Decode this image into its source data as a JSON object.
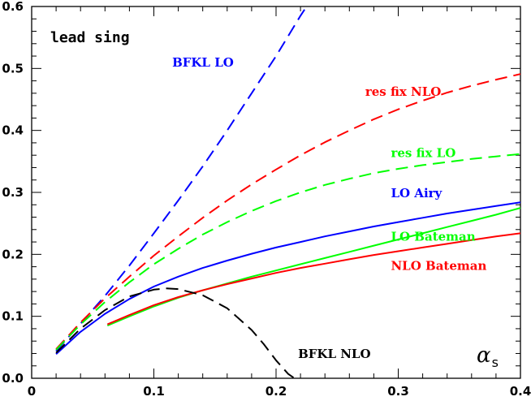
{
  "chart_data": {
    "type": "line",
    "title": "lead sing",
    "xlabel_symbol": "α",
    "xlabel_sub": "s",
    "ylabel": "",
    "xlim": [
      0,
      0.4
    ],
    "ylim": [
      0,
      0.6
    ],
    "xticks": [
      "0",
      "0.1",
      "0.2",
      "0.3",
      "0.4"
    ],
    "yticks": [
      "0.0",
      "0.1",
      "0.2",
      "0.3",
      "0.4",
      "0.5",
      "0.6"
    ],
    "grid": false,
    "series": [
      {
        "name": "BFKL LO",
        "color": "#0000ff",
        "style": "dashed",
        "x": [
          0.02,
          0.04,
          0.06,
          0.08,
          0.1,
          0.12,
          0.14,
          0.16,
          0.18,
          0.2,
          0.22,
          0.225
        ],
        "y": [
          0.044,
          0.088,
          0.133,
          0.182,
          0.234,
          0.287,
          0.342,
          0.4,
          0.46,
          0.52,
          0.585,
          0.6
        ]
      },
      {
        "name": "res fix NLO",
        "color": "#ff0000",
        "style": "dashed",
        "x": [
          0.02,
          0.04,
          0.06,
          0.08,
          0.1,
          0.12,
          0.14,
          0.16,
          0.18,
          0.2,
          0.22,
          0.24,
          0.26,
          0.28,
          0.3,
          0.32,
          0.34,
          0.36,
          0.38,
          0.4
        ],
        "y": [
          0.047,
          0.09,
          0.129,
          0.164,
          0.198,
          0.229,
          0.259,
          0.287,
          0.313,
          0.337,
          0.36,
          0.381,
          0.4,
          0.418,
          0.434,
          0.448,
          0.461,
          0.472,
          0.482,
          0.491
        ]
      },
      {
        "name": "res fix LO",
        "color": "#00ff00",
        "style": "dashed",
        "x": [
          0.02,
          0.04,
          0.06,
          0.08,
          0.1,
          0.12,
          0.14,
          0.16,
          0.18,
          0.2,
          0.22,
          0.24,
          0.26,
          0.28,
          0.3,
          0.32,
          0.34,
          0.36,
          0.38,
          0.4
        ],
        "y": [
          0.046,
          0.087,
          0.123,
          0.155,
          0.184,
          0.209,
          0.232,
          0.252,
          0.27,
          0.286,
          0.3,
          0.312,
          0.322,
          0.331,
          0.338,
          0.344,
          0.349,
          0.354,
          0.358,
          0.362
        ]
      },
      {
        "name": "LO Airy",
        "color": "#0000ff",
        "style": "solid",
        "x": [
          0.02,
          0.04,
          0.06,
          0.08,
          0.1,
          0.12,
          0.14,
          0.16,
          0.18,
          0.2,
          0.22,
          0.24,
          0.26,
          0.28,
          0.3,
          0.32,
          0.34,
          0.36,
          0.38,
          0.4
        ],
        "y": [
          0.039,
          0.075,
          0.104,
          0.128,
          0.148,
          0.164,
          0.178,
          0.19,
          0.201,
          0.211,
          0.22,
          0.229,
          0.237,
          0.245,
          0.252,
          0.259,
          0.266,
          0.272,
          0.278,
          0.284
        ]
      },
      {
        "name": "LO Bateman",
        "color": "#00ff00",
        "style": "solid",
        "x": [
          0.062,
          0.08,
          0.1,
          0.12,
          0.14,
          0.16,
          0.18,
          0.2,
          0.22,
          0.24,
          0.26,
          0.28,
          0.3,
          0.32,
          0.34,
          0.36,
          0.38,
          0.4
        ],
        "y": [
          0.085,
          0.1,
          0.116,
          0.13,
          0.142,
          0.153,
          0.164,
          0.174,
          0.184,
          0.194,
          0.204,
          0.214,
          0.224,
          0.234,
          0.244,
          0.254,
          0.264,
          0.275
        ]
      },
      {
        "name": "NLO Bateman",
        "color": "#ff0000",
        "style": "solid",
        "x": [
          0.062,
          0.08,
          0.1,
          0.12,
          0.14,
          0.16,
          0.18,
          0.2,
          0.22,
          0.24,
          0.26,
          0.28,
          0.3,
          0.32,
          0.34,
          0.36,
          0.38,
          0.4
        ],
        "y": [
          0.087,
          0.102,
          0.118,
          0.131,
          0.142,
          0.152,
          0.161,
          0.17,
          0.178,
          0.185,
          0.192,
          0.199,
          0.205,
          0.211,
          0.217,
          0.223,
          0.229,
          0.234
        ]
      },
      {
        "name": "BFKL NLO",
        "color": "#000000",
        "style": "dashed",
        "x": [
          0.02,
          0.04,
          0.06,
          0.08,
          0.1,
          0.11,
          0.12,
          0.14,
          0.16,
          0.18,
          0.19,
          0.2,
          0.21,
          0.215
        ],
        "y": [
          0.041,
          0.08,
          0.11,
          0.132,
          0.143,
          0.145,
          0.144,
          0.134,
          0.113,
          0.078,
          0.055,
          0.029,
          0.007,
          0.0
        ]
      }
    ],
    "annotations": [
      {
        "text": "BFKL LO",
        "color": "#0000ff",
        "x": 0.115,
        "y": 0.503
      },
      {
        "text": "res fix NLO",
        "color": "#ff0000",
        "x": 0.273,
        "y": 0.456
      },
      {
        "text": "res fix LO",
        "color": "#00ff00",
        "x": 0.294,
        "y": 0.357
      },
      {
        "text": "LO Airy",
        "color": "#0000ff",
        "x": 0.294,
        "y": 0.292
      },
      {
        "text": "LO Bateman",
        "color": "#00ff00",
        "x": 0.294,
        "y": 0.222
      },
      {
        "text": "NLO Bateman",
        "color": "#ff0000",
        "x": 0.294,
        "y": 0.175
      },
      {
        "text": "BFKL NLO",
        "color": "#000000",
        "x": 0.218,
        "y": 0.033
      }
    ]
  }
}
